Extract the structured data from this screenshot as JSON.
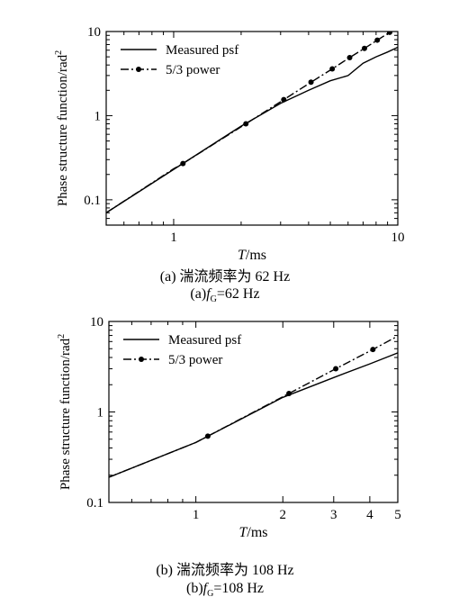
{
  "chart_data": [
    {
      "type": "line",
      "xscale": "log",
      "yscale": "log",
      "xlim": [
        0.5,
        10
      ],
      "ylim": [
        0.05,
        10
      ],
      "xlabel": {
        "var": "T",
        "unit": "/ms"
      },
      "ylabel": "Phase structure function/rad",
      "ylabel_sup": "2",
      "xticks": [
        1,
        10
      ],
      "xtick_labels": [
        "1",
        "10"
      ],
      "yticks": [
        0.1,
        1,
        10
      ],
      "ytick_labels": [
        "0.1",
        "1",
        "10"
      ],
      "legend_position": "top-left",
      "series": [
        {
          "name": "Measured psf",
          "style": "solid",
          "x": [
            0.5,
            1,
            2,
            3,
            4,
            5,
            6,
            7,
            8,
            9,
            10
          ],
          "y": [
            0.07,
            0.23,
            0.75,
            1.4,
            2.0,
            2.6,
            3.0,
            4.2,
            5.0,
            5.7,
            6.5
          ]
        },
        {
          "name": "5/3 power",
          "style": "dash-dot",
          "marker": "circle",
          "x": [
            0.5,
            1,
            1.1,
            2.1,
            3.1,
            4.1,
            5.1,
            6.1,
            7.1,
            8.1,
            9.2,
            10
          ],
          "y": [
            0.07,
            0.234,
            0.27,
            0.8,
            1.55,
            2.5,
            3.6,
            4.9,
            6.3,
            7.9,
            9.8,
            11.3
          ],
          "markers_x": [
            1.1,
            2.1,
            3.1,
            4.1,
            5.1,
            6.1,
            7.1,
            8.1,
            9.2
          ]
        }
      ]
    },
    {
      "type": "line",
      "xscale": "log",
      "yscale": "log",
      "xlim": [
        0.5,
        5
      ],
      "ylim": [
        0.1,
        10
      ],
      "xlabel": {
        "var": "T",
        "unit": "/ms"
      },
      "ylabel": "Phase structure function/rad",
      "ylabel_sup": "2",
      "xticks": [
        1,
        2,
        3,
        4,
        5
      ],
      "xtick_labels": [
        "1",
        "2",
        "3",
        "4",
        "5"
      ],
      "yticks": [
        0.1,
        1,
        10
      ],
      "ytick_labels": [
        "0.1",
        "1",
        "10"
      ],
      "legend_position": "top-left",
      "series": [
        {
          "name": "Measured psf",
          "style": "solid",
          "x": [
            0.5,
            1,
            2,
            3,
            4,
            5
          ],
          "y": [
            0.19,
            0.46,
            1.45,
            2.4,
            3.4,
            4.5
          ]
        },
        {
          "name": "5/3 power",
          "style": "dash-dot",
          "marker": "circle",
          "x": [
            0.5,
            1,
            1.1,
            2.1,
            3.05,
            4.1,
            5
          ],
          "y": [
            0.19,
            0.46,
            0.54,
            1.6,
            3.0,
            4.9,
            6.9
          ],
          "markers_x": [
            1.1,
            2.1,
            3.05,
            4.1
          ]
        }
      ]
    }
  ],
  "captions": [
    {
      "line1": "(a) 湍流频率为 62 Hz",
      "prefix": "(a)",
      "var": "f",
      "sub": "G",
      "value": "=62 Hz"
    },
    {
      "line1": "(b) 湍流频率为 108 Hz",
      "prefix": "(b)",
      "var": "f",
      "sub": "G",
      "value": "=108 Hz"
    }
  ]
}
